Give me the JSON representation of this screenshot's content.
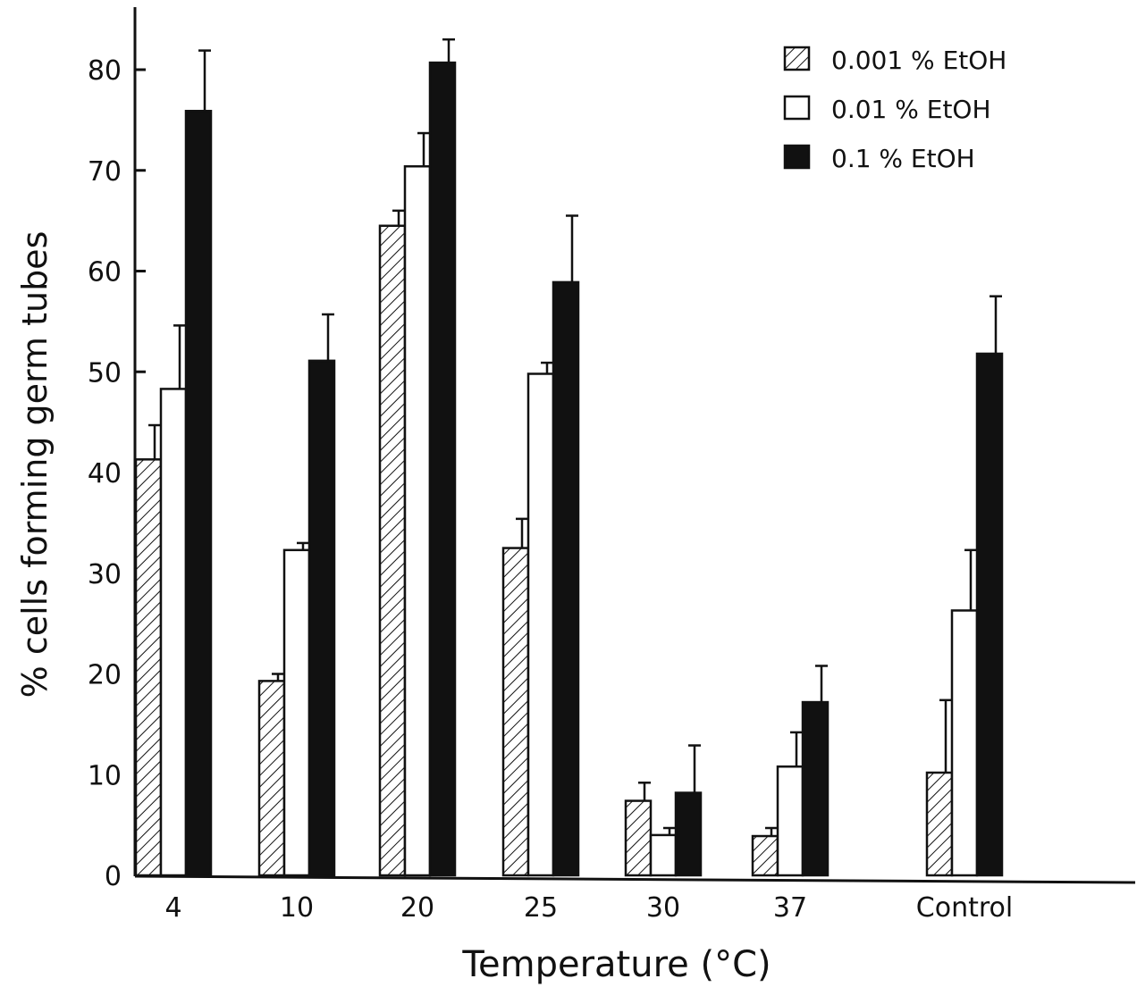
{
  "chart_data": {
    "type": "bar",
    "xlabel": "Temperature (°C)",
    "ylabel": "% cells forming germ tubes",
    "categories": [
      "4",
      "10",
      "20",
      "25",
      "30",
      "37",
      "Control"
    ],
    "ylim": [
      0,
      85
    ],
    "yticks": [
      0,
      10,
      20,
      30,
      40,
      50,
      60,
      70,
      80
    ],
    "grid": false,
    "legend_position": "top-right",
    "series": [
      {
        "name": "0.001 % EtOH",
        "pattern": "hatched",
        "color": "#ffffff",
        "values": [
          41.3,
          19.3,
          64.5,
          32.5,
          7.4,
          3.9,
          10.2
        ],
        "errors": [
          3.4,
          0.7,
          1.5,
          2.9,
          1.8,
          0.8,
          7.2
        ]
      },
      {
        "name": "0.01 % EtOH",
        "pattern": "open",
        "color": "#ffffff",
        "values": [
          48.3,
          32.3,
          70.4,
          49.8,
          4.0,
          10.8,
          26.3
        ],
        "errors": [
          6.3,
          0.7,
          3.3,
          1.1,
          0.7,
          3.4,
          6.0
        ]
      },
      {
        "name": "0.1 % EtOH",
        "pattern": "solid",
        "color": "#111111",
        "values": [
          75.9,
          51.1,
          80.7,
          58.9,
          8.2,
          17.2,
          51.8
        ],
        "errors": [
          6.0,
          4.6,
          2.3,
          6.6,
          4.7,
          3.6,
          5.7
        ]
      }
    ]
  }
}
